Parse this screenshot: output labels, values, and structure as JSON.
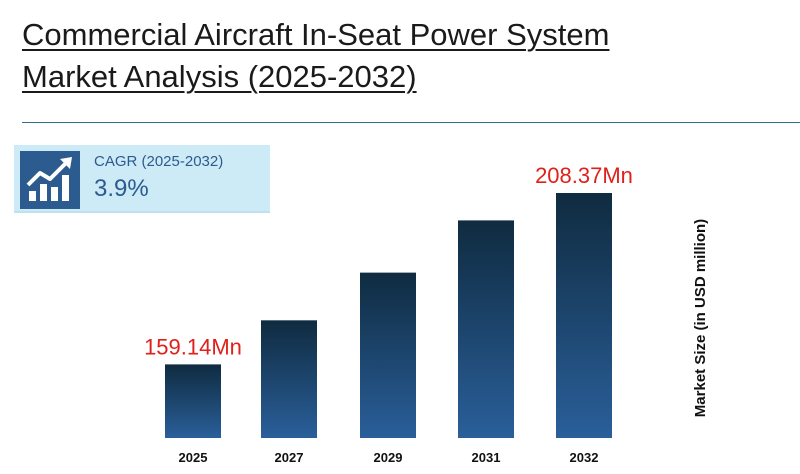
{
  "header": {
    "title_line1": "Commercial Aircraft In-Seat Power System",
    "title_line2": "Market Analysis (2025-2032)"
  },
  "cagr": {
    "label": "CAGR (2025-2032)",
    "value": "3.9%",
    "icon": "growth-chart-icon"
  },
  "colors": {
    "bar_top": "#0f2b40",
    "bar_bottom": "#2a5f9a",
    "annotation": "#e0201a",
    "accent": "#2c5b8f"
  },
  "chart_data": {
    "type": "bar",
    "categories": [
      "2025",
      "2027",
      "2029",
      "2031",
      "2032"
    ],
    "values": [
      159.14,
      171.8,
      185.5,
      200.5,
      208.37
    ],
    "ylabel": "Market Size (in USD million)",
    "ylim": [
      0,
      208.37
    ],
    "grid": false,
    "legend": "none",
    "annotations": [
      {
        "index": 0,
        "text": "159.14Mn"
      },
      {
        "index": 4,
        "text": "208.37Mn"
      }
    ]
  }
}
